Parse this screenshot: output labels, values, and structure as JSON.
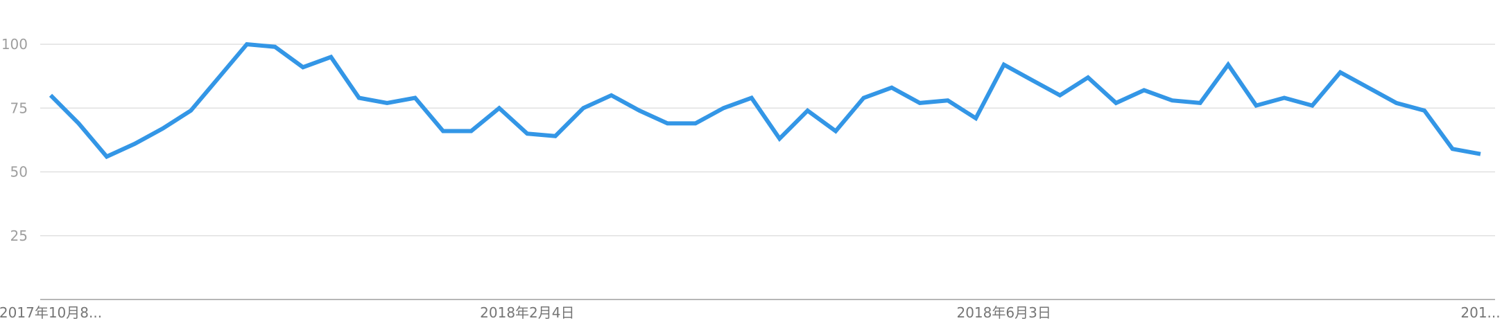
{
  "chart_data": {
    "type": "line",
    "title": "",
    "xlabel": "",
    "ylabel": "",
    "ylim": [
      0,
      100
    ],
    "y_ticks": [
      25,
      50,
      75,
      100
    ],
    "grid": true,
    "x_tick_labels": [
      {
        "label": "2017年10月8...",
        "index": 0
      },
      {
        "label": "2018年2月4日",
        "index": 17
      },
      {
        "label": "2018年6月3日",
        "index": 34
      },
      {
        "label": "201...",
        "index": 51
      }
    ],
    "series": [
      {
        "color": "#3396e6",
        "values": [
          80,
          69,
          56,
          61,
          67,
          74,
          87,
          100,
          99,
          91,
          95,
          79,
          77,
          79,
          66,
          66,
          75,
          65,
          64,
          75,
          80,
          74,
          69,
          69,
          75,
          79,
          63,
          74,
          66,
          79,
          83,
          77,
          78,
          71,
          92,
          86,
          80,
          87,
          77,
          82,
          78,
          77,
          92,
          76,
          79,
          76,
          89,
          83,
          77,
          74,
          59,
          57
        ]
      }
    ]
  }
}
